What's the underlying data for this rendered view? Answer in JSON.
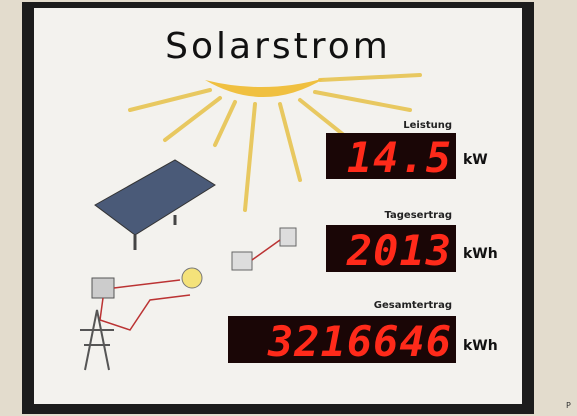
{
  "title": "Solarstrom",
  "displays": [
    {
      "label": "Leistung",
      "value": "14.5",
      "unit": "kW"
    },
    {
      "label": "Tagesertrag",
      "value": "2013",
      "unit": "kWh"
    },
    {
      "label": "Gesamtertrag",
      "value": "3216646",
      "unit": "kWh"
    }
  ],
  "corner_text": "P"
}
